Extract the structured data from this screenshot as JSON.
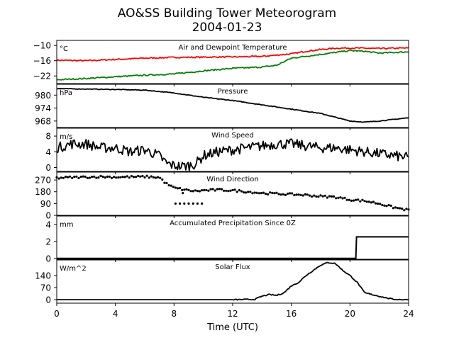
{
  "chart_data": {
    "type": "line",
    "title": "AO&SS Building Tower Meteorogram",
    "subtitle": "2004-01-23",
    "xlabel": "Time (UTC)",
    "xlim": [
      0,
      24
    ],
    "xticks": [
      0,
      4,
      8,
      12,
      16,
      20,
      24
    ],
    "panels": [
      {
        "title": "Air and Dewpoint Temperature",
        "unit": "°C",
        "ylim": [
          -25,
          -8
        ],
        "yticks": [
          -10,
          -16,
          -22
        ],
        "ytick_labels": [
          "−10",
          "−16",
          "−22"
        ],
        "series": [
          {
            "color": "#ff0000",
            "style": "line",
            "x": [
              0,
              2,
              4,
              6,
              8,
              10,
              12,
              14,
              16,
              17,
              18,
              19,
              20,
              22,
              24
            ],
            "y": [
              -15.8,
              -16.0,
              -15.5,
              -15.0,
              -14.7,
              -14.6,
              -14.5,
              -14.3,
              -13.3,
              -12.3,
              -11.6,
              -11.1,
              -11.0,
              -11.2,
              -11.0
            ]
          },
          {
            "color": "#008000",
            "style": "line",
            "x": [
              0,
              2,
              4,
              6,
              8,
              10,
              12,
              14,
              15,
              16,
              18,
              20,
              21,
              22,
              24
            ],
            "y": [
              -23.5,
              -23.0,
              -22.3,
              -21.7,
              -21.2,
              -20.0,
              -19.0,
              -18.5,
              -17.8,
              -15.0,
              -13.5,
              -12.0,
              -12.3,
              -13.0,
              -12.5
            ]
          }
        ]
      },
      {
        "title": "Pressure",
        "unit": "hPa",
        "ylim": [
          965,
          985
        ],
        "yticks": [
          980,
          974,
          968
        ],
        "ytick_labels": [
          "980",
          "974",
          "968"
        ],
        "series": [
          {
            "color": "#000000",
            "style": "line",
            "x": [
              0,
              2,
              4,
              6,
              8,
              10,
              12,
              14,
              16,
              18,
              20,
              21,
              22,
              24
            ],
            "y": [
              983.0,
              982.8,
              982.6,
              982.3,
              981.0,
              979.0,
              977.5,
              975.5,
              973.5,
              971.5,
              968.0,
              967.5,
              968.0,
              969.5
            ]
          }
        ]
      },
      {
        "title": "Wind Speed",
        "unit": "m/s",
        "ylim": [
          -1,
          10
        ],
        "yticks": [
          8,
          4,
          0
        ],
        "ytick_labels": [
          "8",
          "4",
          "0"
        ],
        "series": [
          {
            "color": "#000000",
            "style": "line",
            "x": [
              0,
              1,
              2,
              3,
              4,
              5,
              6,
              7,
              7.5,
              8,
              8.5,
              9,
              9.5,
              10,
              11,
              12,
              13,
              14,
              15,
              16,
              17,
              18,
              19,
              20,
              21,
              22,
              23,
              24
            ],
            "y": [
              5,
              6,
              6,
              5,
              5,
              4,
              4.5,
              3,
              1,
              0.5,
              0.3,
              0.5,
              1,
              3,
              4,
              4.5,
              5,
              5.5,
              6,
              6,
              5.5,
              5,
              5,
              4.5,
              4,
              3.5,
              3,
              2.5
            ]
          }
        ]
      },
      {
        "title": "Wind Direction",
        "unit": "",
        "ylim": [
          0,
          330
        ],
        "yticks": [
          270,
          180,
          90,
          0
        ],
        "ytick_labels": [
          "270",
          "180",
          "90",
          "0"
        ],
        "series": [
          {
            "color": "#000000",
            "style": "markers",
            "x": [
              0,
              1,
              2,
              3,
              4,
              5,
              6,
              7,
              7.5,
              8,
              8.5,
              9,
              9.5,
              10,
              11,
              12,
              13,
              14,
              15,
              16,
              17,
              18,
              19,
              20,
              21,
              22,
              23,
              24
            ],
            "y": [
              285,
              290,
              292,
              295,
              292,
              293,
              295,
              290,
              240,
              210,
              200,
              190,
              185,
              190,
              195,
              190,
              180,
              170,
              165,
              160,
              155,
              145,
              140,
              120,
              110,
              90,
              60,
              40
            ]
          },
          {
            "color": "#000000",
            "style": "markers",
            "x": [
              8.1,
              8.4,
              8.7,
              9.0,
              9.3,
              9.6,
              9.9,
              8.6
            ],
            "y": [
              90,
              90,
              90,
              90,
              90,
              90,
              90,
              170
            ]
          }
        ]
      },
      {
        "title": "Accumulated Precipitation Since 0Z",
        "unit": "mm",
        "ylim": [
          -0.1,
          5
        ],
        "yticks": [
          4,
          2,
          0
        ],
        "ytick_labels": [
          "4",
          "2",
          "0"
        ],
        "series": [
          {
            "color": "#000000",
            "style": "step",
            "x": [
              0,
              20.4,
              20.45,
              24
            ],
            "y": [
              0,
              0,
              2.54,
              2.54
            ]
          }
        ]
      },
      {
        "title": "Solar Flux",
        "unit": "W/m^2",
        "ylim": [
          -20,
          230
        ],
        "yticks": [
          140,
          70,
          0
        ],
        "ytick_labels": [
          "140",
          "70",
          "0"
        ],
        "series": [
          {
            "color": "#000000",
            "style": "line",
            "x": [
              0,
              12,
              13.5,
              14,
              14.5,
              15,
              15.5,
              16,
              16.5,
              17,
              17.5,
              18,
              18.5,
              19,
              19.5,
              20,
              20.5,
              21,
              21.5,
              22,
              22.5,
              23,
              24
            ],
            "y": [
              0,
              0,
              2,
              20,
              30,
              25,
              40,
              80,
              100,
              140,
              170,
              200,
              215,
              210,
              170,
              140,
              100,
              40,
              30,
              20,
              10,
              2,
              0
            ]
          }
        ]
      }
    ]
  }
}
